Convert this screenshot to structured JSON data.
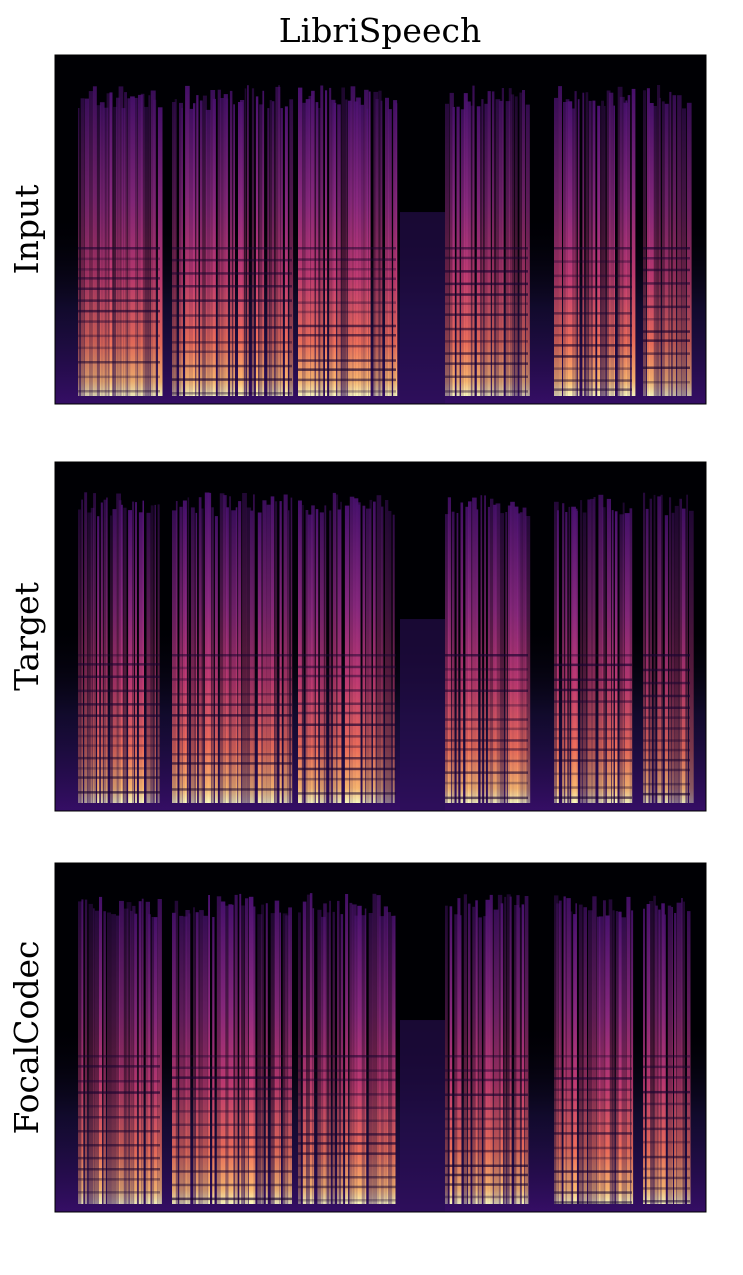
{
  "title": "LibriSpeech",
  "panels": [
    {
      "label": "Input"
    },
    {
      "label": "Target"
    },
    {
      "label": "FocalCodec"
    }
  ]
}
